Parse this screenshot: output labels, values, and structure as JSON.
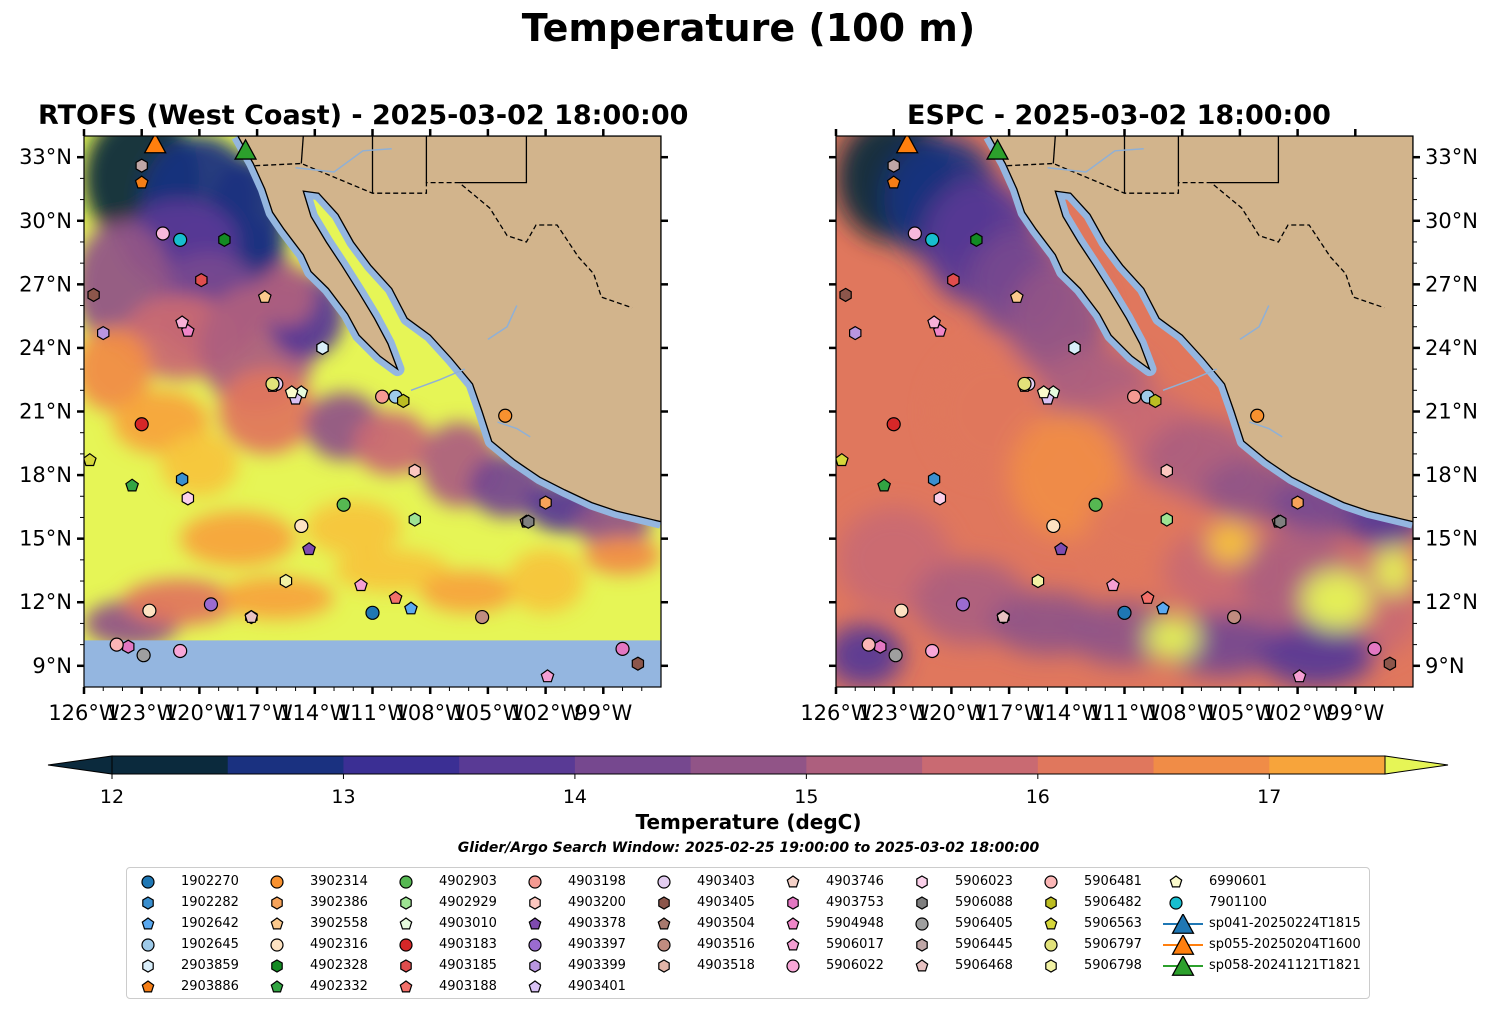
{
  "figure": {
    "title": "Temperature (100 m)",
    "panels": [
      {
        "title": "RTOFS (West Coast) - 2025-03-02 18:00:00",
        "side": "left"
      },
      {
        "title": "ESPC - 2025-03-02 18:00:00",
        "side": "right"
      }
    ],
    "colorbar": {
      "label": "Temperature (degC)",
      "ticks": [
        12,
        13,
        14,
        15,
        16,
        17
      ],
      "levels": [
        12.0,
        12.5,
        13.0,
        13.5,
        14.0,
        14.5,
        15.0,
        15.5,
        16.0,
        16.5,
        17.0,
        17.5
      ],
      "colors": [
        "#0b2a3d",
        "#1a3180",
        "#3b2f94",
        "#593a95",
        "#76488f",
        "#915487",
        "#ad5f7e",
        "#c96a72",
        "#e0775d",
        "#f08c47",
        "#f7a43b",
        "#f7c53c",
        "#e6f556"
      ],
      "extend": "both"
    },
    "search_window_text": "Glider/Argo Search Window: 2025-02-25 19:00:00 to 2025-03-02 18:00:00"
  },
  "chart_data": {
    "type": "map",
    "lon_range": [
      -126,
      -96
    ],
    "lat_range": [
      8,
      34
    ],
    "xticks": [
      -126,
      -123,
      -120,
      -117,
      -114,
      -111,
      -108,
      -105,
      -102,
      -99
    ],
    "xtick_labels": [
      "126°W",
      "123°W",
      "120°W",
      "117°W",
      "114°W",
      "111°W",
      "108°W",
      "105°W",
      "102°W",
      "99°W"
    ],
    "yticks": [
      9,
      12,
      15,
      18,
      21,
      24,
      27,
      30,
      33
    ],
    "ytick_labels": [
      "9°N",
      "12°N",
      "15°N",
      "18°N",
      "21°N",
      "24°N",
      "27°N",
      "30°N",
      "33°N"
    ],
    "land_color": "#d2b48c",
    "shelf_color": "#94b6e0",
    "floats": [
      {
        "id": "1902270",
        "lon": -111,
        "lat": 11.5,
        "marker": "circle",
        "color": "#1f77b4"
      },
      {
        "id": "1902282",
        "lon": -113.6,
        "lat": 24.0,
        "marker": "hexagon",
        "color": "#3a8fcf"
      },
      {
        "id": "1902642",
        "lon": -109,
        "lat": 11.7,
        "marker": "pentagon",
        "color": "#5aa9f0"
      },
      {
        "id": "1902645",
        "lon": -109.8,
        "lat": 21.7,
        "marker": "circle",
        "color": "#9ecae9"
      },
      {
        "id": "2903859",
        "lon": -113.6,
        "lat": 24.0,
        "marker": "hexagon",
        "color": "#d9eefa"
      },
      {
        "id": "2903886",
        "lon": -123,
        "lat": 31.8,
        "marker": "pentagon",
        "color": "#f57e16"
      },
      {
        "id": "3902314",
        "lon": -104.1,
        "lat": 20.8,
        "marker": "circle",
        "color": "#f8912f"
      },
      {
        "id": "3902386",
        "lon": -102,
        "lat": 16.7,
        "marker": "hexagon",
        "color": "#f6a35a"
      },
      {
        "id": "3902558",
        "lon": -116.6,
        "lat": 26.4,
        "marker": "pentagon",
        "color": "#fbc98d"
      },
      {
        "id": "4902316",
        "lon": -122.6,
        "lat": 11.6,
        "marker": "circle",
        "color": "#fde2c2"
      },
      {
        "id": "4902328",
        "lon": -118.7,
        "lat": 29.1,
        "marker": "hexagon",
        "color": "#138a23"
      },
      {
        "id": "4902332",
        "lon": -123.5,
        "lat": 17.5,
        "marker": "pentagon",
        "color": "#32a543"
      },
      {
        "id": "4902903",
        "lon": -112.5,
        "lat": 16.6,
        "marker": "circle",
        "color": "#56b852"
      },
      {
        "id": "4902929",
        "lon": -108.8,
        "lat": 15.9,
        "marker": "hexagon",
        "color": "#9ee393"
      },
      {
        "id": "4903010",
        "lon": -114.7,
        "lat": 21.9,
        "marker": "pentagon",
        "color": "#e6fadd"
      },
      {
        "id": "4903183",
        "lon": -123,
        "lat": 20.4,
        "marker": "circle",
        "color": "#d62728"
      },
      {
        "id": "4903185",
        "lon": -119.9,
        "lat": 27.2,
        "marker": "hexagon",
        "color": "#e04d4d"
      },
      {
        "id": "4903188",
        "lon": -109.8,
        "lat": 12.2,
        "marker": "pentagon",
        "color": "#f3706a"
      },
      {
        "id": "4903198",
        "lon": -110.5,
        "lat": 21.7,
        "marker": "circle",
        "color": "#f59a92"
      },
      {
        "id": "4903200",
        "lon": -108.8,
        "lat": 18.2,
        "marker": "hexagon",
        "color": "#fcc7c0"
      },
      {
        "id": "4903378",
        "lon": -114.3,
        "lat": 14.5,
        "marker": "pentagon",
        "color": "#7f4bb0"
      },
      {
        "id": "4903397",
        "lon": -119.4,
        "lat": 11.9,
        "marker": "circle",
        "color": "#9b6bcf"
      },
      {
        "id": "4903399",
        "lon": -125,
        "lat": 24.7,
        "marker": "hexagon",
        "color": "#b996e0"
      },
      {
        "id": "4903401",
        "lon": -115,
        "lat": 21.6,
        "marker": "pentagon",
        "color": "#d9c2f4"
      },
      {
        "id": "4903403",
        "lon": -116,
        "lat": 22.3,
        "marker": "circle",
        "color": "#e2ccf0"
      },
      {
        "id": "4903405",
        "lon": -125.5,
        "lat": 26.5,
        "marker": "hexagon",
        "color": "#8c564b"
      },
      {
        "id": "4903504",
        "lon": -103,
        "lat": 15.8,
        "marker": "pentagon",
        "color": "#a8796e"
      },
      {
        "id": "4903516",
        "lon": -105.3,
        "lat": 11.3,
        "marker": "circle",
        "color": "#c08c80"
      },
      {
        "id": "4903518",
        "lon": -117.3,
        "lat": 11.3,
        "marker": "hexagon",
        "color": "#e3b5a8"
      },
      {
        "id": "4903746",
        "lon": -116.2,
        "lat": 22.2,
        "marker": "pentagon",
        "color": "#f5d1c8"
      },
      {
        "id": "4903753",
        "lon": -123.7,
        "lat": 9.9,
        "marker": "hexagon",
        "color": "#e377c2"
      },
      {
        "id": "5904948",
        "lon": -120.6,
        "lat": 24.8,
        "marker": "pentagon",
        "color": "#ef86c8"
      },
      {
        "id": "5906017",
        "lon": -111.6,
        "lat": 12.8,
        "marker": "pentagon",
        "color": "#f59fd3"
      },
      {
        "id": "5906022",
        "lon": -121,
        "lat": 9.7,
        "marker": "circle",
        "color": "#f8a7d7"
      },
      {
        "id": "5906023",
        "lon": -120.6,
        "lat": 16.9,
        "marker": "hexagon",
        "color": "#fbd0ea"
      },
      {
        "id": "5906088",
        "lon": -102.9,
        "lat": 15.8,
        "marker": "hexagon",
        "color": "#7f7f7f"
      },
      {
        "id": "5906405",
        "lon": -122.9,
        "lat": 9.5,
        "marker": "circle",
        "color": "#9f9f9f"
      },
      {
        "id": "5906445",
        "lon": -123,
        "lat": 32.6,
        "marker": "hexagon",
        "color": "#bfa6a6"
      },
      {
        "id": "5906468",
        "lon": -117.3,
        "lat": 11.3,
        "marker": "pentagon",
        "color": "#e8c2c2"
      },
      {
        "id": "5906481",
        "lon": -124.3,
        "lat": 10.0,
        "marker": "circle",
        "color": "#fbb6b6"
      },
      {
        "id": "5906482",
        "lon": -109.4,
        "lat": 21.5,
        "marker": "hexagon",
        "color": "#bcbd22"
      },
      {
        "id": "5906563",
        "lon": -125.7,
        "lat": 18.7,
        "marker": "pentagon",
        "color": "#d6d73a"
      },
      {
        "id": "5906797",
        "lon": -116.2,
        "lat": 22.3,
        "marker": "circle",
        "color": "#e2e27a"
      },
      {
        "id": "5906798",
        "lon": -115.5,
        "lat": 13.0,
        "marker": "hexagon",
        "color": "#f2f2a4"
      },
      {
        "id": "6990601",
        "lon": -115.2,
        "lat": 21.9,
        "marker": "pentagon",
        "color": "#fbfbcc"
      },
      {
        "id": "7901100",
        "lon": -121,
        "lat": 29.1,
        "marker": "circle",
        "color": "#17becf"
      }
    ],
    "extra_floats": [
      {
        "lon": -121.9,
        "lat": 29.4,
        "marker": "circle",
        "color": "#f8b9dc"
      },
      {
        "lon": -120.9,
        "lat": 25.2,
        "marker": "pentagon",
        "color": "#f8b0d8"
      },
      {
        "lon": -114.7,
        "lat": 15.6,
        "marker": "circle",
        "color": "#fde2c2"
      },
      {
        "lon": -98,
        "lat": 9.8,
        "marker": "circle",
        "color": "#e377c2"
      },
      {
        "lon": -97.2,
        "lat": 9.1,
        "marker": "hexagon",
        "color": "#8c564b"
      },
      {
        "lon": -101.9,
        "lat": 8.5,
        "marker": "pentagon",
        "color": "#f59fd3"
      },
      {
        "lon": -120.9,
        "lat": 17.8,
        "marker": "hexagon",
        "color": "#3a8fcf"
      }
    ],
    "gliders": [
      {
        "id": "sp041-20250224T1815",
        "lon": -120.3,
        "lat": 34.5,
        "color": "#1f77b4"
      },
      {
        "id": "sp055-20250204T1600",
        "lon": -122.3,
        "lat": 33.6,
        "color": "#ff7f0e"
      },
      {
        "id": "sp058-20241121T1821",
        "lon": -117.6,
        "lat": 33.3,
        "color": "#2ca02c"
      }
    ]
  },
  "legend": {
    "columns": [
      [
        "1902270",
        "1902282",
        "1902642",
        "1902645",
        "2903859",
        "2903886"
      ],
      [
        "3902314",
        "3902386",
        "3902558",
        "4902316",
        "4902328",
        "4902332"
      ],
      [
        "4902903",
        "4902929",
        "4903010",
        "4903183",
        "4903185",
        "4903188"
      ],
      [
        "4903198",
        "4903200",
        "4903378",
        "4903397",
        "4903399",
        "4903401"
      ],
      [
        "4903403",
        "4903405",
        "4903504",
        "4903516",
        "4903518"
      ],
      [
        "4903746",
        "4903753",
        "5904948",
        "5906017",
        "5906022"
      ],
      [
        "5906023",
        "5906088",
        "5906405",
        "5906445",
        "5906468"
      ],
      [
        "5906481",
        "5906482",
        "5906563",
        "5906797",
        "5906798"
      ],
      [
        "6990601",
        "7901100",
        "sp041-20250224T1815",
        "sp055-20250204T1600",
        "sp058-20241121T1821"
      ]
    ]
  }
}
